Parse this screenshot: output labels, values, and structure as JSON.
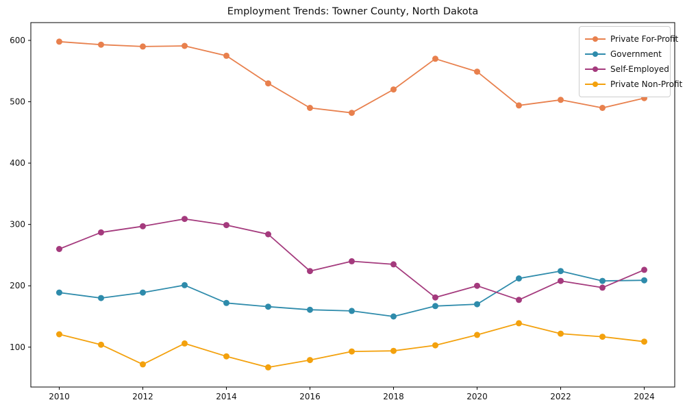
{
  "page": {
    "title": "Employment Trends: Towner County, North Dakota"
  },
  "chart_data": {
    "type": "line",
    "title": "Employment Trends: Towner County, North Dakota",
    "xlabel": "",
    "ylabel": "",
    "x": [
      2010,
      2011,
      2012,
      2013,
      2014,
      2015,
      2016,
      2017,
      2018,
      2019,
      2020,
      2021,
      2022,
      2023,
      2024
    ],
    "series": [
      {
        "name": "Private For-Profit",
        "color": "#e8804d",
        "values": [
          598,
          593,
          590,
          591,
          575,
          530,
          490,
          482,
          520,
          570,
          549,
          494,
          503,
          490,
          506
        ]
      },
      {
        "name": "Government",
        "color": "#2e8bab",
        "values": [
          189,
          180,
          189,
          201,
          172,
          166,
          161,
          159,
          150,
          167,
          170,
          212,
          224,
          208,
          209
        ]
      },
      {
        "name": "Self-Employed",
        "color": "#a43a7d",
        "values": [
          260,
          287,
          297,
          309,
          299,
          284,
          224,
          240,
          235,
          181,
          200,
          177,
          208,
          197,
          226
        ]
      },
      {
        "name": "Private Non-Profit",
        "color": "#f3a10d",
        "values": [
          121,
          104,
          72,
          106,
          85,
          67,
          79,
          93,
          94,
          103,
          120,
          139,
          122,
          117,
          109
        ]
      }
    ],
    "xticks": [
      2010,
      2012,
      2014,
      2016,
      2018,
      2020,
      2022,
      2024
    ],
    "yticks": [
      100,
      200,
      300,
      400,
      500,
      600
    ],
    "xlim": [
      2009.32,
      2024.73
    ],
    "ylim": [
      35,
      629
    ],
    "grid": false,
    "legend_position": "upper right",
    "marker": "circle",
    "line_width": 1.8,
    "marker_radius": 4.5,
    "axis_color": "#000000"
  }
}
